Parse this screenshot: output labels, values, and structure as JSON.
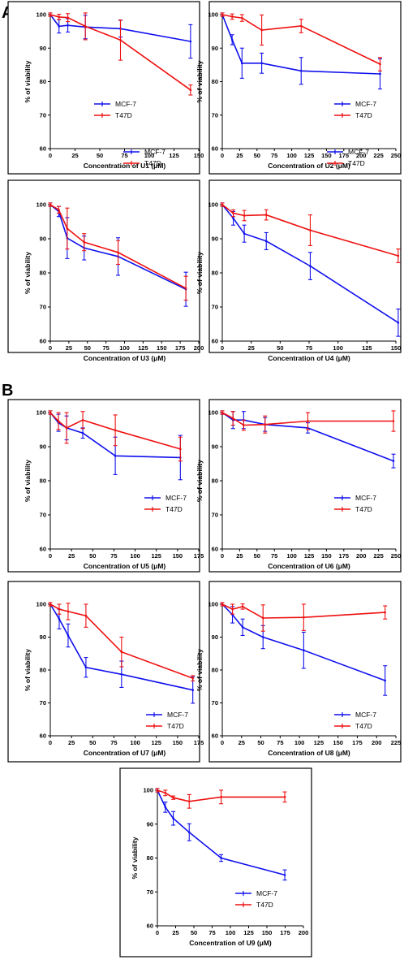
{
  "sections": [
    {
      "id": "A",
      "label": "A"
    },
    {
      "id": "B",
      "label": "B"
    }
  ],
  "colors": {
    "MCF-7": "#1010ee",
    "T47D": "#ee1010"
  },
  "chart_data": [
    {
      "type": "line",
      "panel": "U1",
      "xlabel": "Concentration of U1 (μM)",
      "ylabel": "% of viability",
      "xlim": [
        0,
        150
      ],
      "ylim": [
        60,
        100
      ],
      "xticks": [
        0,
        25,
        50,
        75,
        100,
        125,
        150
      ],
      "yticks": [
        60,
        70,
        80,
        90,
        100
      ],
      "legend": "center-left",
      "series": [
        {
          "name": "MCF-7",
          "x": [
            0,
            8.8,
            17.7,
            35.4,
            70.9,
            141.7
          ],
          "y": [
            100,
            96.5,
            96.8,
            96.3,
            95.8,
            92.0
          ],
          "err": [
            0.5,
            2.0,
            2.0,
            3.5,
            2.5,
            5.0
          ]
        },
        {
          "name": "T47D",
          "x": [
            0,
            8.8,
            17.7,
            35.4,
            70.9,
            141.7
          ],
          "y": [
            100,
            99.3,
            99.1,
            96.5,
            92.4,
            77.5
          ],
          "err": [
            0.5,
            0.8,
            1.2,
            4.0,
            6.0,
            1.5
          ]
        }
      ]
    },
    {
      "type": "line",
      "panel": "U2",
      "xlabel": "Concentration of U2 (μM)",
      "ylabel": "% of viability",
      "xlim": [
        0,
        250
      ],
      "ylim": [
        60,
        100
      ],
      "xticks": [
        0,
        25,
        50,
        75,
        100,
        125,
        150,
        175,
        200,
        225,
        250
      ],
      "yticks": [
        60,
        70,
        80,
        90,
        100
      ],
      "legend": "center-right",
      "series": [
        {
          "name": "MCF-7",
          "x": [
            0,
            14.2,
            28.4,
            56.8,
            113.6,
            227.2
          ],
          "y": [
            100,
            92.5,
            85.5,
            85.5,
            83.2,
            82.3
          ],
          "err": [
            0.5,
            1.5,
            4.5,
            3.0,
            4.0,
            4.5
          ]
        },
        {
          "name": "T47D",
          "x": [
            0,
            14.2,
            28.4,
            56.8,
            113.6,
            227.2
          ],
          "y": [
            100,
            99.4,
            99.0,
            95.4,
            96.6,
            85.2
          ],
          "err": [
            0.5,
            0.8,
            1.0,
            4.5,
            2.0,
            2.0
          ]
        }
      ]
    },
    {
      "type": "line",
      "panel": "U3",
      "xlabel": "Concentration of U3 (μM)",
      "ylabel": "% of viability",
      "xlim": [
        0,
        200
      ],
      "ylim": [
        60,
        100
      ],
      "xticks": [
        0,
        25,
        50,
        75,
        100,
        125,
        150,
        175,
        200
      ],
      "yticks": [
        60,
        70,
        80,
        90,
        100
      ],
      "legend": "top-right",
      "series": [
        {
          "name": "MCF-7",
          "x": [
            0,
            11.4,
            22.8,
            45.6,
            91.3,
            182.6
          ],
          "y": [
            100,
            98.0,
            90.2,
            87.3,
            84.8,
            75.2
          ],
          "err": [
            0.5,
            1.5,
            6.0,
            3.5,
            5.5,
            5.0
          ]
        },
        {
          "name": "T47D",
          "x": [
            0,
            11.4,
            22.8,
            45.6,
            91.3,
            182.6
          ],
          "y": [
            100,
            98.5,
            93.0,
            89.0,
            86.0,
            75.5
          ],
          "err": [
            0.5,
            1.0,
            6.0,
            2.5,
            3.5,
            3.5
          ]
        }
      ]
    },
    {
      "type": "line",
      "panel": "U4",
      "xlabel": "Concentration of U4 (μM)",
      "ylabel": "% of viability",
      "xlim": [
        0,
        150
      ],
      "ylim": [
        60,
        100
      ],
      "xticks": [
        0,
        25,
        50,
        75,
        100,
        125,
        150
      ],
      "yticks": [
        60,
        70,
        80,
        90,
        100
      ],
      "legend": "top-right",
      "series": [
        {
          "name": "MCF-7",
          "x": [
            0,
            9.5,
            19.0,
            38.0,
            76.0,
            152.0
          ],
          "y": [
            100,
            96.0,
            91.5,
            89.3,
            82.0,
            65.4
          ],
          "err": [
            0.5,
            2.0,
            2.5,
            2.5,
            4.0,
            4.0
          ]
        },
        {
          "name": "T47D",
          "x": [
            0,
            9.5,
            19.0,
            38.0,
            76.0,
            152.0
          ],
          "y": [
            100,
            97.5,
            96.8,
            97.0,
            92.5,
            85.0
          ],
          "err": [
            0.5,
            1.0,
            1.5,
            1.5,
            4.5,
            2.0
          ]
        }
      ]
    },
    {
      "type": "line",
      "panel": "U5",
      "xlabel": "Concentration of U5 (μM)",
      "ylabel": "% of viability",
      "xlim": [
        0,
        175
      ],
      "ylim": [
        60,
        100
      ],
      "xticks": [
        0,
        25,
        50,
        75,
        100,
        125,
        150,
        175
      ],
      "yticks": [
        60,
        70,
        80,
        90,
        100
      ],
      "legend": "center-right",
      "series": [
        {
          "name": "MCF-7",
          "x": [
            0,
            9.6,
            19.2,
            38.3,
            76.6,
            153.3
          ],
          "y": [
            100,
            97.0,
            95.5,
            94.0,
            87.3,
            86.8
          ],
          "err": [
            0.5,
            2.5,
            3.5,
            1.5,
            5.5,
            6.5
          ]
        },
        {
          "name": "T47D",
          "x": [
            0,
            9.6,
            19.2,
            38.3,
            76.6,
            153.3
          ],
          "y": [
            100,
            97.5,
            95.5,
            97.8,
            94.8,
            89.3
          ],
          "err": [
            0.5,
            2.5,
            4.5,
            2.5,
            4.5,
            3.5
          ]
        }
      ]
    },
    {
      "type": "line",
      "panel": "U6",
      "xlabel": "Concentration of U6 (μM)",
      "ylabel": "% of viability",
      "xlim": [
        0,
        250
      ],
      "ylim": [
        60,
        100
      ],
      "xticks": [
        0,
        25,
        50,
        75,
        100,
        125,
        150,
        175,
        200,
        225,
        250
      ],
      "yticks": [
        60,
        70,
        80,
        90,
        100
      ],
      "legend": "center-right",
      "series": [
        {
          "name": "MCF-7",
          "x": [
            0,
            15.4,
            30.8,
            61.6,
            123.2,
            246.5
          ],
          "y": [
            100,
            97.8,
            97.8,
            96.5,
            95.5,
            85.8
          ],
          "err": [
            0.5,
            2.5,
            2.5,
            2.0,
            1.5,
            2.0
          ]
        },
        {
          "name": "T47D",
          "x": [
            0,
            15.4,
            30.8,
            61.6,
            123.2,
            246.5
          ],
          "y": [
            100,
            98.3,
            96.3,
            96.5,
            97.5,
            97.5
          ],
          "err": [
            0.5,
            2.0,
            1.5,
            2.5,
            2.5,
            3.0
          ]
        }
      ]
    },
    {
      "type": "line",
      "panel": "U7",
      "xlabel": "Concentration of U7 (μM)",
      "ylabel": "% of viability",
      "xlim": [
        0,
        175
      ],
      "ylim": [
        60,
        100
      ],
      "xticks": [
        0,
        25,
        50,
        75,
        100,
        125,
        150,
        175
      ],
      "yticks": [
        60,
        70,
        80,
        90,
        100
      ],
      "legend": "bottom-right",
      "series": [
        {
          "name": "MCF-7",
          "x": [
            0,
            10.5,
            21.0,
            42.0,
            84.0,
            168.0
          ],
          "y": [
            100,
            95.5,
            90.5,
            80.8,
            78.7,
            73.9
          ],
          "err": [
            0.5,
            3.0,
            3.5,
            3.0,
            4.0,
            4.0
          ]
        },
        {
          "name": "T47D",
          "x": [
            0,
            10.5,
            21.0,
            42.0,
            84.0,
            168.0
          ],
          "y": [
            100,
            98.5,
            97.8,
            96.5,
            85.5,
            77.5
          ],
          "err": [
            0.5,
            1.5,
            2.5,
            3.5,
            4.5,
            0.8
          ]
        }
      ]
    },
    {
      "type": "line",
      "panel": "U8",
      "xlabel": "Concentration of U8 (μM)",
      "ylabel": "% of viability",
      "xlim": [
        0,
        225
      ],
      "ylim": [
        60,
        100
      ],
      "xticks": [
        0,
        25,
        50,
        75,
        100,
        125,
        150,
        175,
        200,
        225
      ],
      "yticks": [
        60,
        70,
        80,
        90,
        100
      ],
      "legend": "bottom-right",
      "series": [
        {
          "name": "MCF-7",
          "x": [
            0,
            13.2,
            26.4,
            52.8,
            105.5,
            211.0
          ],
          "y": [
            100,
            96.8,
            93.0,
            90.0,
            86.0,
            76.8
          ],
          "err": [
            0.5,
            2.5,
            2.5,
            3.5,
            5.5,
            4.5
          ]
        },
        {
          "name": "T47D",
          "x": [
            0,
            13.2,
            26.4,
            52.8,
            105.5,
            211.0
          ],
          "y": [
            100,
            98.5,
            99.3,
            95.8,
            96.0,
            97.5
          ],
          "err": [
            0.5,
            1.5,
            0.8,
            4.0,
            4.0,
            2.0
          ]
        }
      ]
    },
    {
      "type": "line",
      "panel": "U9",
      "xlabel": "Concentration of U9 (μM)",
      "ylabel": "% of viability",
      "xlim": [
        0,
        200
      ],
      "ylim": [
        60,
        100
      ],
      "xticks": [
        0,
        25,
        50,
        75,
        100,
        125,
        150,
        175,
        200
      ],
      "yticks": [
        60,
        70,
        80,
        90,
        100
      ],
      "legend": "bottom-right",
      "series": [
        {
          "name": "MCF-7",
          "x": [
            0,
            10.9,
            21.8,
            43.6,
            87.3,
            174.5
          ],
          "y": [
            100,
            95.0,
            91.7,
            87.6,
            80.0,
            75.0
          ],
          "err": [
            0.5,
            1.5,
            2.0,
            2.5,
            1.0,
            1.5
          ]
        },
        {
          "name": "T47D",
          "x": [
            0,
            10.9,
            21.8,
            43.6,
            87.3,
            174.5
          ],
          "y": [
            100,
            99.2,
            97.8,
            96.7,
            98.0,
            98.0
          ],
          "err": [
            0.5,
            0.8,
            0.5,
            2.0,
            2.0,
            1.5
          ]
        }
      ]
    }
  ]
}
